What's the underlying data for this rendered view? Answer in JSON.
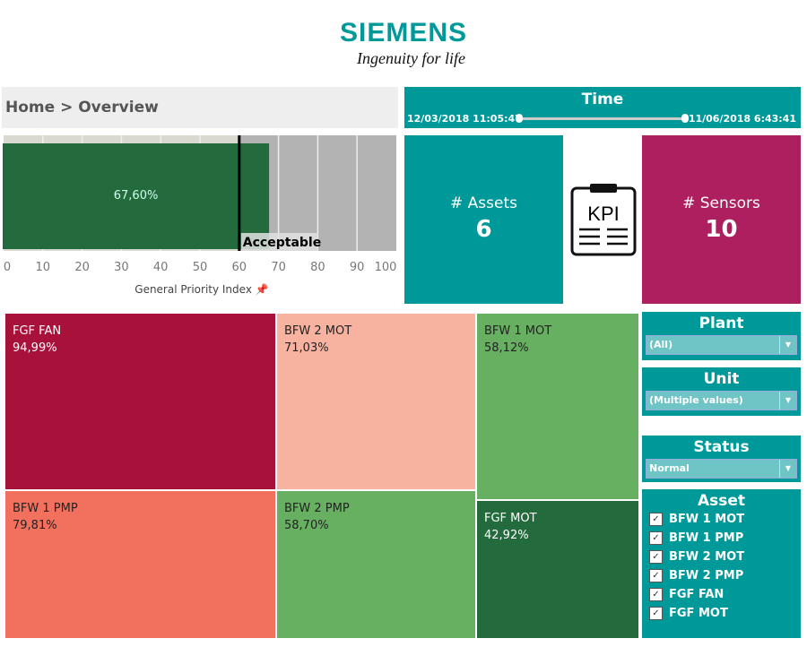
{
  "logo": {
    "brand": "SIEMENS",
    "tagline": "Ingenuity for life"
  },
  "breadcrumb": "Home > Overview",
  "gpi": {
    "value_label": "67,60%",
    "reference_label": "Acceptable",
    "axis_title": "General Priority Index",
    "chart_data": {
      "type": "bar",
      "orientation": "horizontal",
      "values": [
        67.6
      ],
      "reference": 60,
      "bands": [
        {
          "from": 0,
          "to": 60,
          "color": "#d9d9d0"
        },
        {
          "from": 60,
          "to": 100,
          "color": "#b3b3b3"
        }
      ],
      "xlim": [
        0,
        100
      ],
      "ticks": [
        "0",
        "10",
        "20",
        "30",
        "40",
        "50",
        "60",
        "70",
        "80",
        "90",
        "100"
      ],
      "bar_color": "#236b3c"
    }
  },
  "time": {
    "title": "Time",
    "start": "12/03/2018 11:05:47",
    "end": "11/06/2018 6:43:41"
  },
  "assets": {
    "label": "# Assets",
    "value": "6"
  },
  "kpi_icon": {
    "text": "KPI"
  },
  "sensors": {
    "label": "# Sensors",
    "value": "10"
  },
  "treemap": [
    {
      "name": "FGF FAN",
      "value": "94,99%",
      "color": "#a8123a",
      "text": "#fff"
    },
    {
      "name": "BFW 1 PMP",
      "value": "79,81%",
      "color": "#f2705e",
      "text": "#222"
    },
    {
      "name": "BFW 2 MOT",
      "value": "71,03%",
      "color": "#f7b2a0",
      "text": "#222"
    },
    {
      "name": "BFW 2 PMP",
      "value": "58,70%",
      "color": "#68b061",
      "text": "#222"
    },
    {
      "name": "BFW 1 MOT",
      "value": "58,12%",
      "color": "#68b061",
      "text": "#222"
    },
    {
      "name": "FGF MOT",
      "value": "42,92%",
      "color": "#236b3c",
      "text": "#fff"
    }
  ],
  "filters": {
    "plant": {
      "title": "Plant",
      "value": "(All)"
    },
    "unit": {
      "title": "Unit",
      "value": "(Multiple values)"
    },
    "status": {
      "title": "Status",
      "value": "Normal"
    },
    "asset": {
      "title": "Asset",
      "items": [
        "BFW 1 MOT",
        "BFW 1 PMP",
        "BFW 2 MOT",
        "BFW 2 PMP",
        "FGF FAN",
        "FGF MOT"
      ]
    }
  }
}
